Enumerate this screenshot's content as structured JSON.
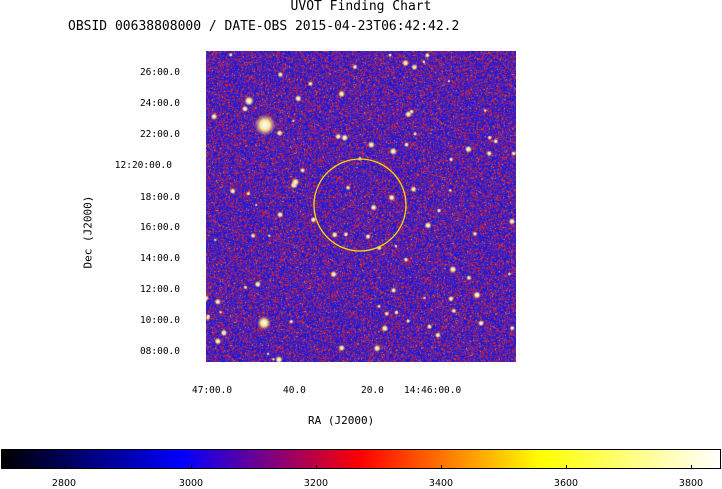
{
  "header": {
    "title": "UVOT Finding Chart",
    "subtitle": "OBSID 00638808000 / DATE-OBS 2015-04-23T06:42:42.2"
  },
  "axes": {
    "dec_label": "Dec (J2000)",
    "ra_label": "RA (J2000)",
    "dec_ticks": [
      "26:00.0",
      "24:00.0",
      "22:00.0",
      "12:20:00.0",
      "18:00.0",
      "16:00.0",
      "14:00.0",
      "12:00.0",
      "10:00.0",
      "08:00.0"
    ],
    "ra_ticks": [
      "47:00.0",
      "40.0",
      "20.0",
      "14:46:00.0"
    ]
  },
  "colorbar": {
    "ticks": [
      "2800",
      "3000",
      "3200",
      "3400",
      "3600",
      "3800"
    ],
    "colors": [
      "#000000",
      "#0000ff",
      "#ff0000",
      "#ffff00",
      "#ffffff"
    ]
  },
  "marker": {
    "color": "#ffd700"
  }
}
